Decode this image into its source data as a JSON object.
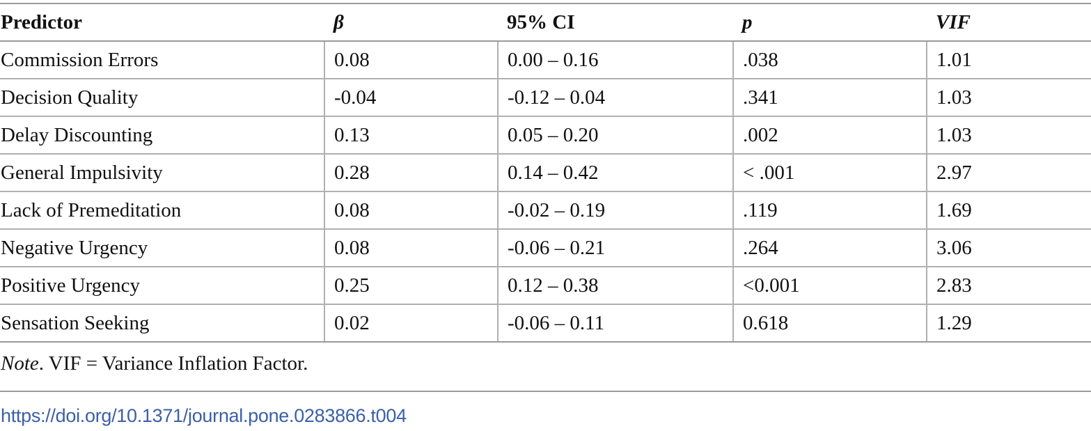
{
  "table": {
    "headers": [
      "Predictor",
      "β",
      "95% CI",
      "p",
      "VIF"
    ],
    "rows": [
      [
        "Commission Errors",
        "0.08",
        "0.00 – 0.16",
        ".038",
        "1.01"
      ],
      [
        "Decision Quality",
        "-0.04",
        "-0.12 – 0.04",
        ".341",
        "1.03"
      ],
      [
        "Delay Discounting",
        "0.13",
        "0.05 – 0.20",
        ".002",
        "1.03"
      ],
      [
        "General Impulsivity",
        "0.28",
        "0.14 – 0.42",
        "< .001",
        "2.97"
      ],
      [
        "Lack of Premeditation",
        "0.08",
        "-0.02 – 0.19",
        ".119",
        "1.69"
      ],
      [
        "Negative Urgency",
        "0.08",
        "-0.06 – 0.21",
        ".264",
        "3.06"
      ],
      [
        "Positive Urgency",
        "0.25",
        "0.12 – 0.38",
        "<0.001",
        "2.83"
      ],
      [
        "Sensation Seeking",
        "0.02",
        "-0.06 – 0.11",
        "0.618",
        "1.29"
      ]
    ]
  },
  "note": {
    "label": "Note",
    "text": ". VIF = Variance Inflation Factor."
  },
  "doi_link": "https://doi.org/10.1371/journal.pone.0283866.t004"
}
